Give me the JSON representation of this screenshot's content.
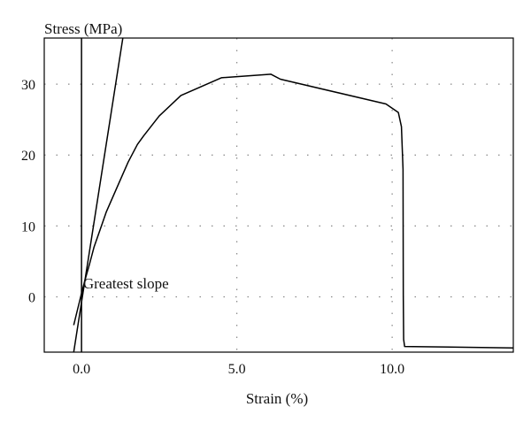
{
  "chart_data": {
    "type": "line",
    "title": "",
    "xlabel": "Strain (%)",
    "ylabel": "Stress (MPa)",
    "xlim": [
      -1.2,
      13.9
    ],
    "ylim": [
      -7.8,
      36.5
    ],
    "x_ticks": [
      0.0,
      5.0,
      10.0
    ],
    "x_tick_labels": [
      "0.0",
      "5.0",
      "10.0"
    ],
    "y_ticks": [
      0,
      10,
      20,
      30
    ],
    "y_tick_labels": [
      "0",
      "10",
      "20",
      "30"
    ],
    "grid": "dotted",
    "series": [
      {
        "x": [
          -0.25,
          0.0,
          0.12,
          0.25,
          0.4,
          0.6,
          0.8,
          1.0,
          1.2,
          1.5,
          1.8,
          2.0,
          2.5,
          3.2,
          4.5,
          6.1,
          6.4,
          9.8,
          10.2,
          10.3,
          10.35,
          10.36,
          10.37,
          10.4,
          13.9
        ],
        "y": [
          -4,
          0.5,
          2.5,
          4.5,
          7,
          9.5,
          12.0,
          14.0,
          16.0,
          19.0,
          21.5,
          22.7,
          25.5,
          28.4,
          30.9,
          31.4,
          30.7,
          27.2,
          26.0,
          24.0,
          18.0,
          0.0,
          -6.0,
          -7.0,
          -7.2
        ]
      },
      {
        "x": [
          -0.25,
          1.33
        ],
        "y": [
          -7.8,
          36.5
        ]
      }
    ],
    "annotations": [
      {
        "text": "Greatest slope",
        "x": 0.05,
        "y": 1.2
      }
    ]
  }
}
